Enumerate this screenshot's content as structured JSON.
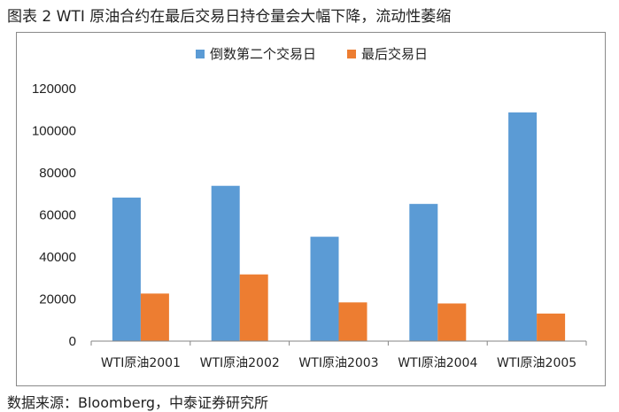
{
  "figure": {
    "title": "图表 2 WTI 原油合约在最后交易日持仓量会大幅下降，流动性萎缩",
    "source": "数据来源：Bloomberg，中泰证券研究所"
  },
  "colors": {
    "series1": "#5b9bd5",
    "series2": "#ed7d31",
    "axis": "#868686",
    "frame": "#8a8a8a"
  },
  "chart_data": {
    "type": "bar",
    "categories": [
      "WTI原油2001",
      "WTI原油2002",
      "WTI原油2003",
      "WTI原油2004",
      "WTI原油2005"
    ],
    "series": [
      {
        "name": "倒数第二个交易日",
        "values": [
          68200,
          73800,
          49600,
          65200,
          108700
        ]
      },
      {
        "name": "最后交易日",
        "values": [
          22600,
          31700,
          18400,
          17900,
          13100
        ]
      }
    ],
    "ylim": [
      0,
      120000
    ],
    "yticks": [
      "0",
      "20000",
      "40000",
      "60000",
      "80000",
      "100000",
      "120000"
    ],
    "legend": "top",
    "grid": false
  }
}
